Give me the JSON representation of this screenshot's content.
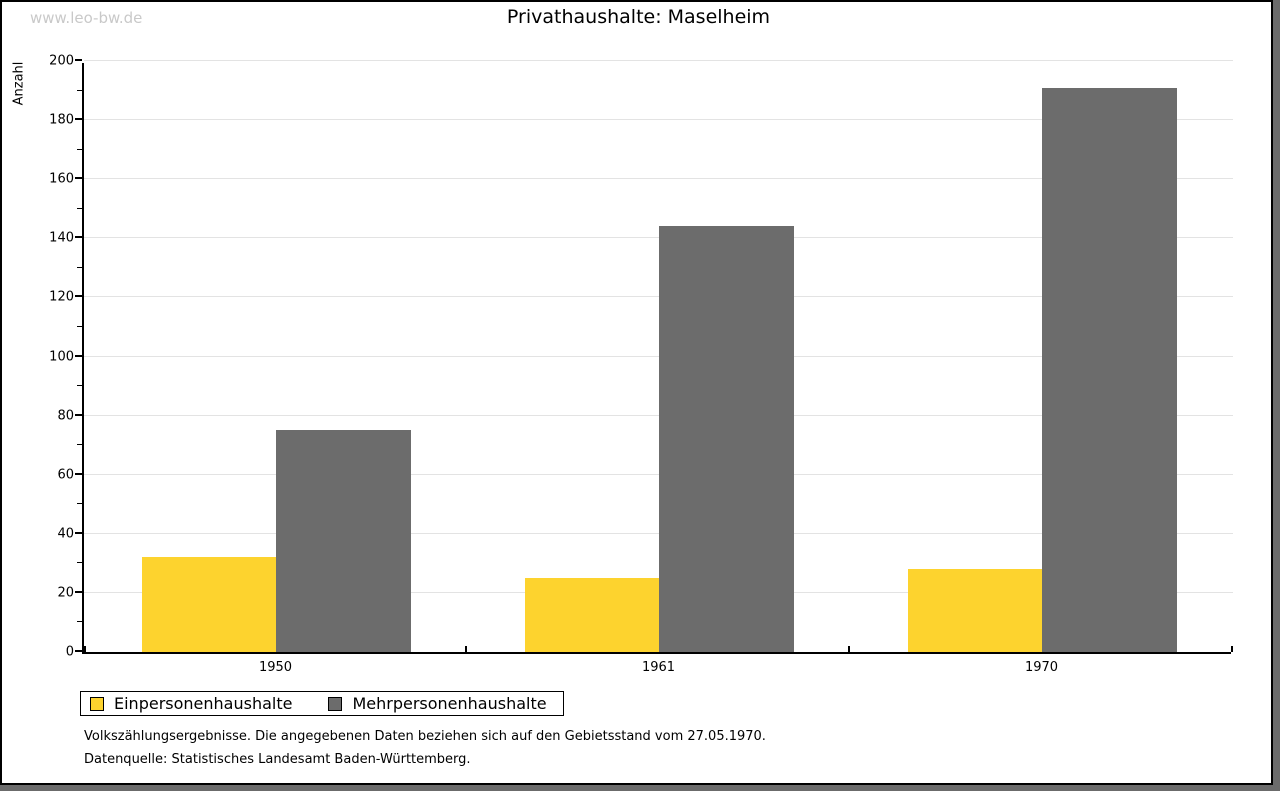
{
  "watermark": "www.leo-bw.de",
  "title": "Privathaushalte: Maselheim",
  "y_axis_label": "Anzahl",
  "footnote1": "Volkszählungsergebnisse. Die angegebenen Daten beziehen sich auf den Gebietsstand vom 27.05.1970.",
  "footnote2": "Datenquelle: Statistisches Landesamt Baden-Württemberg.",
  "colors": {
    "series1": "#FDD32E",
    "series2": "#6C6C6C",
    "gridline": "#E3E3E3",
    "axis": "#000000",
    "watermark": "#C9C9C9",
    "page_shadow": "#6B6B6B"
  },
  "chart_data": {
    "type": "bar",
    "categories": [
      "1950",
      "1961",
      "1970"
    ],
    "series": [
      {
        "name": "Einpersonenhaushalte",
        "color": "#FDD32E",
        "values": [
          32,
          25,
          28
        ]
      },
      {
        "name": "Mehrpersonenhaushalte",
        "color": "#6C6C6C",
        "values": [
          75,
          144,
          191
        ]
      }
    ],
    "title": "Privathaushalte: Maselheim",
    "xlabel": "",
    "ylabel": "Anzahl",
    "ylim": [
      0,
      200
    ],
    "ytick_major_step": 20,
    "ytick_minor_step": 10,
    "grid": true,
    "legend_position": "bottom-left"
  }
}
